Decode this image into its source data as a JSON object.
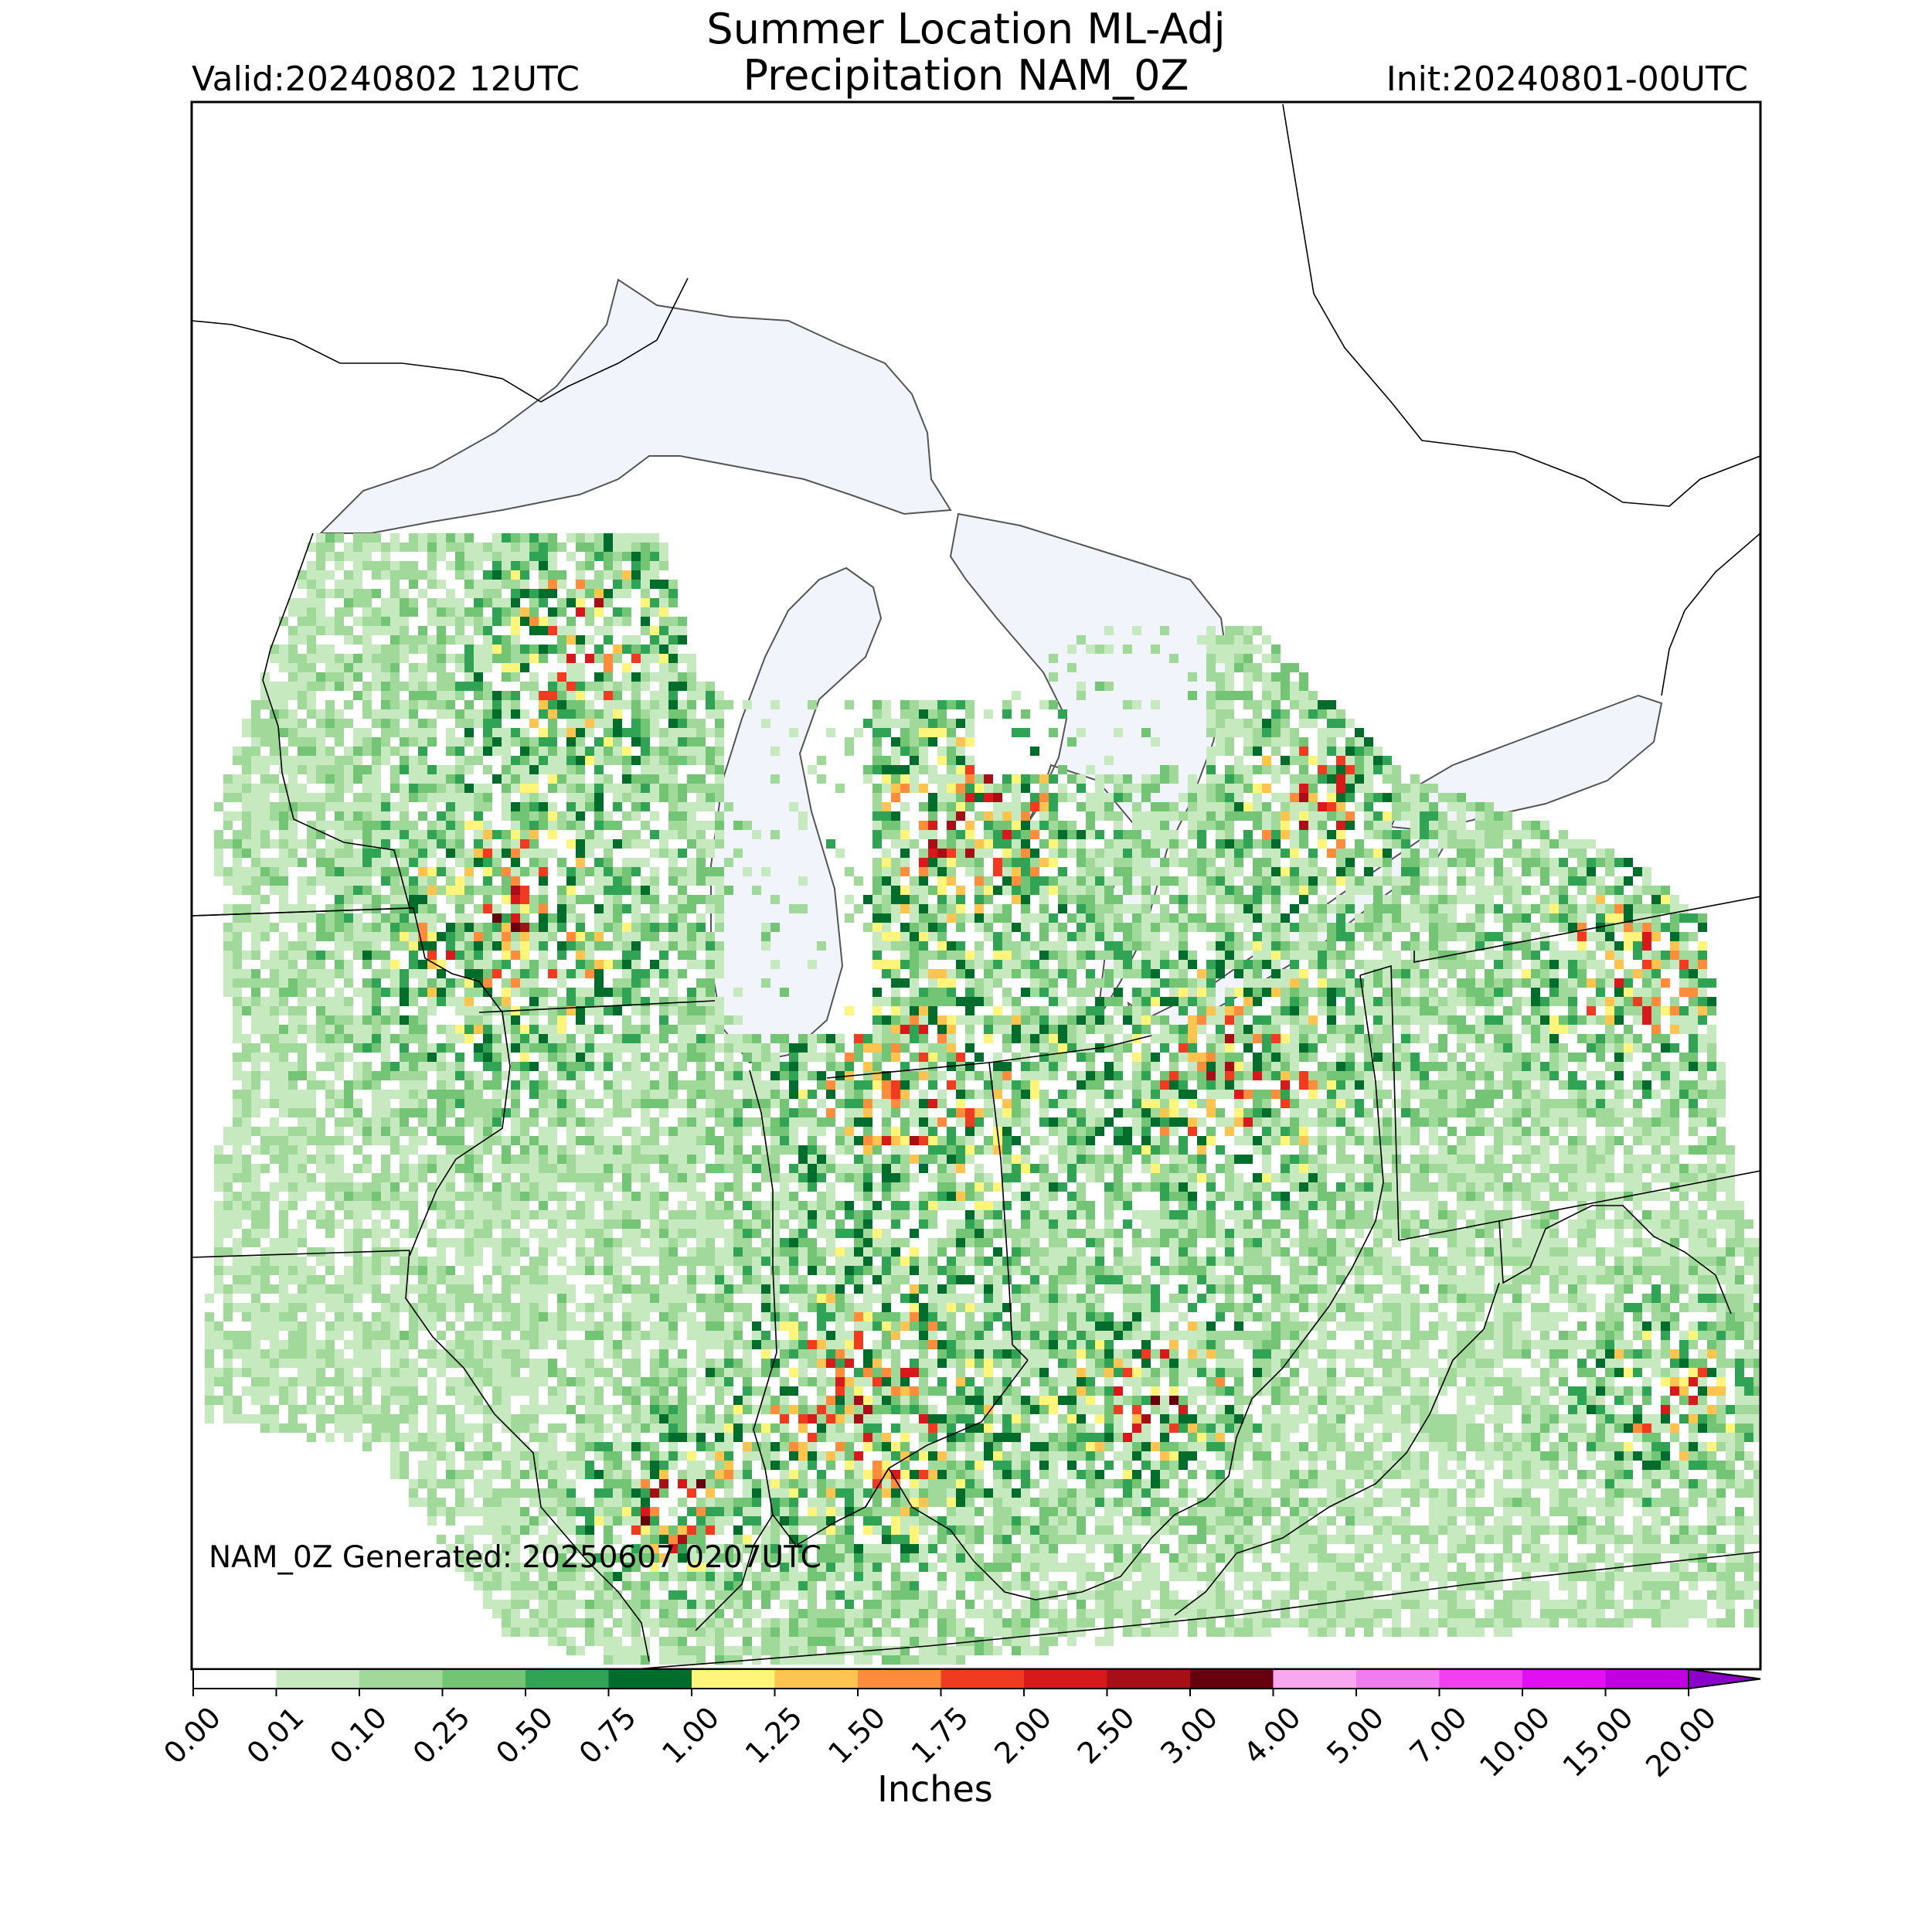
{
  "title": {
    "line1": "Summer Location ML-Adj",
    "line2": "Precipitation NAM_0Z",
    "valid": "Valid:20240802 12UTC",
    "init": "Init:20240801-00UTC"
  },
  "annotation": "NAM_0Z Generated: 20250607 0207UTC",
  "colorbar": {
    "units": "Inches",
    "ticks": [
      "0.00",
      "0.01",
      "0.10",
      "0.25",
      "0.50",
      "0.75",
      "1.00",
      "1.25",
      "1.50",
      "1.75",
      "2.00",
      "2.50",
      "3.00",
      "4.00",
      "5.00",
      "7.00",
      "10.00",
      "15.00",
      "20.00"
    ],
    "colors": [
      "#ffffff",
      "#c7e9c0",
      "#a1d99b",
      "#74c476",
      "#31a354",
      "#006d2c",
      "#fff57a",
      "#fec44f",
      "#fd8d3c",
      "#f03b20",
      "#d7191c",
      "#a50f15",
      "#67000d",
      "#f8a8f0",
      "#f07cf0",
      "#f040f0",
      "#e010f0",
      "#c000e0",
      "#8a00c8"
    ],
    "extend": "max"
  },
  "colors": {
    "lake": "#f1f5fb",
    "border": "#000000",
    "frame": "#000000"
  }
}
